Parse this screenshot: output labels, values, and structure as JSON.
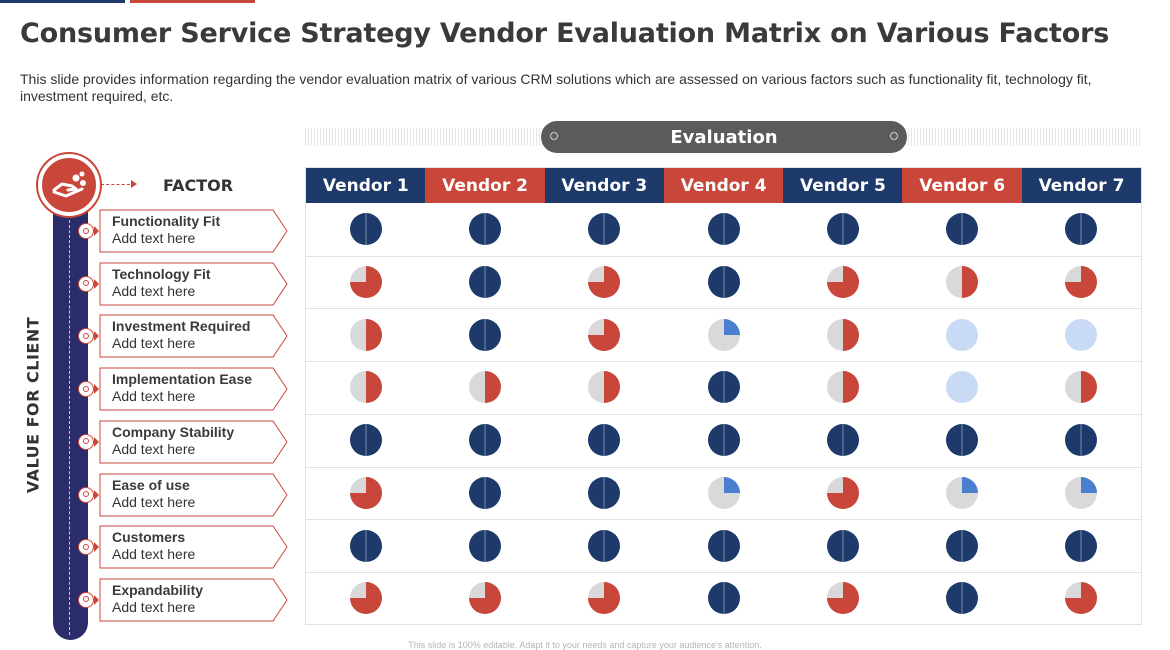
{
  "title": "Consumer Service Strategy Vendor Evaluation Matrix on Various Factors",
  "subtitle": "This slide provides information regarding the vendor evaluation matrix of various CRM solutions which are assessed on various factors such as functionality fit, technology fit, investment required, etc.",
  "evaluation_label": "Evaluation",
  "factor_heading": "FACTOR",
  "side_label": "VALUE FOR CLIENT",
  "footer": "This slide is 100% editable. Adapt it to your needs and capture your audience's attention.",
  "colors": {
    "navy": "#1d3a6b",
    "red": "#c8473a",
    "grey": "#d9d9d9",
    "light_blue": "#c9daf5",
    "mid_blue": "#4a7fd0",
    "side_bar": "#2a2d69",
    "pill": "#5b5b5b"
  },
  "icons": {
    "factor_icon": "hand-coins-icon",
    "row_icon": "target-icon"
  },
  "vendors": [
    {
      "name": "Vendor 1",
      "color": "navy"
    },
    {
      "name": "Vendor 2",
      "color": "red"
    },
    {
      "name": "Vendor 3",
      "color": "navy"
    },
    {
      "name": "Vendor 4",
      "color": "red"
    },
    {
      "name": "Vendor 5",
      "color": "navy"
    },
    {
      "name": "Vendor 6",
      "color": "red"
    },
    {
      "name": "Vendor 7",
      "color": "navy"
    }
  ],
  "factors": [
    {
      "name": "Functionality Fit",
      "sub": "Add text here"
    },
    {
      "name": "Technology Fit",
      "sub": "Add text here"
    },
    {
      "name": "Investment Required",
      "sub": "Add text here"
    },
    {
      "name": "Implementation Ease",
      "sub": "Add text here"
    },
    {
      "name": "Company Stability",
      "sub": "Add text here"
    },
    {
      "name": "Ease of use",
      "sub": "Add text here"
    },
    {
      "name": "Customers",
      "sub": "Add text here"
    },
    {
      "name": "Expandability",
      "sub": "Add text here"
    }
  ],
  "matrix": [
    [
      {
        "t": "full",
        "v": 1
      },
      {
        "t": "full",
        "v": 1
      },
      {
        "t": "full",
        "v": 1
      },
      {
        "t": "full",
        "v": 1
      },
      {
        "t": "full",
        "v": 1
      },
      {
        "t": "full",
        "v": 1
      },
      {
        "t": "full",
        "v": 1
      }
    ],
    [
      {
        "t": "red",
        "v": 0.75
      },
      {
        "t": "full",
        "v": 1
      },
      {
        "t": "red",
        "v": 0.75
      },
      {
        "t": "full",
        "v": 1
      },
      {
        "t": "red",
        "v": 0.75
      },
      {
        "t": "red",
        "v": 0.5
      },
      {
        "t": "red",
        "v": 0.75
      }
    ],
    [
      {
        "t": "red",
        "v": 0.5
      },
      {
        "t": "full",
        "v": 1
      },
      {
        "t": "red",
        "v": 0.75
      },
      {
        "t": "blue",
        "v": 0.25
      },
      {
        "t": "red",
        "v": 0.5
      },
      {
        "t": "light",
        "v": 1
      },
      {
        "t": "light",
        "v": 1
      }
    ],
    [
      {
        "t": "red",
        "v": 0.5
      },
      {
        "t": "red",
        "v": 0.5
      },
      {
        "t": "red",
        "v": 0.5
      },
      {
        "t": "full",
        "v": 1
      },
      {
        "t": "red",
        "v": 0.5
      },
      {
        "t": "light",
        "v": 1
      },
      {
        "t": "red",
        "v": 0.5
      }
    ],
    [
      {
        "t": "full",
        "v": 1
      },
      {
        "t": "full",
        "v": 1
      },
      {
        "t": "full",
        "v": 1
      },
      {
        "t": "full",
        "v": 1
      },
      {
        "t": "full",
        "v": 1
      },
      {
        "t": "full",
        "v": 1
      },
      {
        "t": "full",
        "v": 1
      }
    ],
    [
      {
        "t": "red",
        "v": 0.75
      },
      {
        "t": "full",
        "v": 1
      },
      {
        "t": "full",
        "v": 1
      },
      {
        "t": "blue",
        "v": 0.25
      },
      {
        "t": "red",
        "v": 0.75
      },
      {
        "t": "blue",
        "v": 0.25
      },
      {
        "t": "blue",
        "v": 0.25
      }
    ],
    [
      {
        "t": "full",
        "v": 1
      },
      {
        "t": "full",
        "v": 1
      },
      {
        "t": "full",
        "v": 1
      },
      {
        "t": "full",
        "v": 1
      },
      {
        "t": "full",
        "v": 1
      },
      {
        "t": "full",
        "v": 1
      },
      {
        "t": "full",
        "v": 1
      }
    ],
    [
      {
        "t": "red",
        "v": 0.75
      },
      {
        "t": "red",
        "v": 0.75
      },
      {
        "t": "red",
        "v": 0.75
      },
      {
        "t": "full",
        "v": 1
      },
      {
        "t": "red",
        "v": 0.75
      },
      {
        "t": "full",
        "v": 1
      },
      {
        "t": "red",
        "v": 0.75
      }
    ]
  ]
}
